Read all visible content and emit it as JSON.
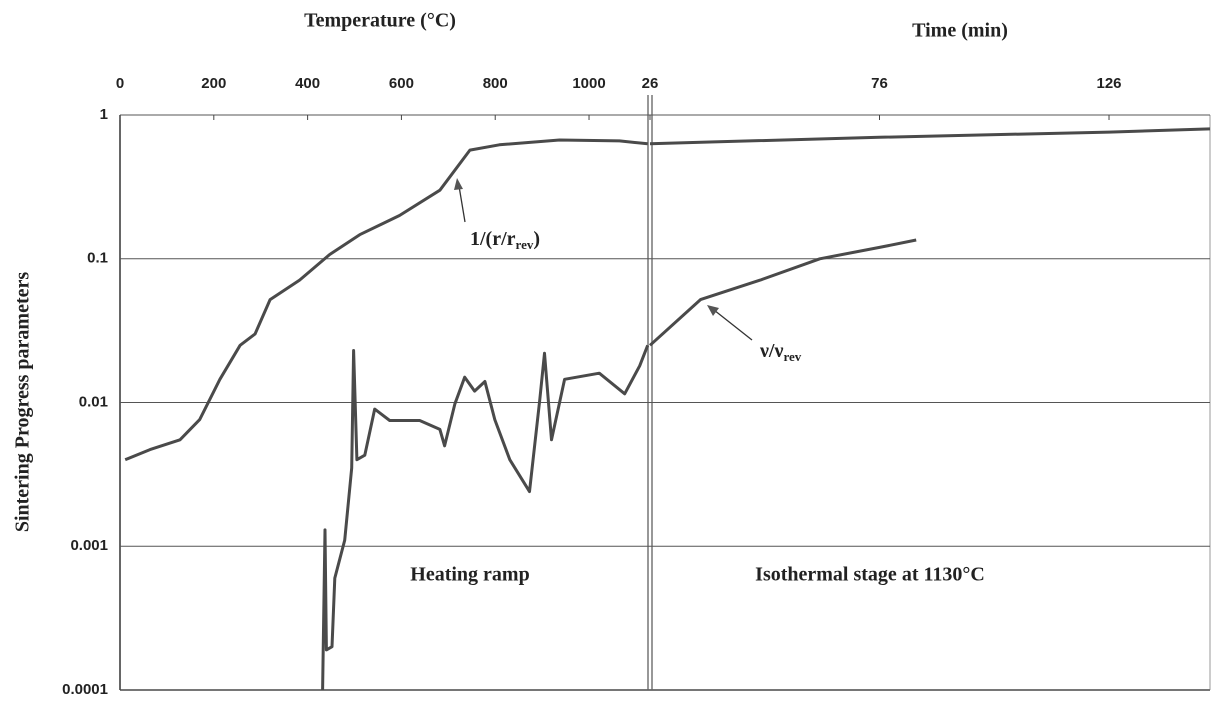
{
  "chart_data": {
    "type": "line",
    "log_y": true,
    "grid": true,
    "x_title": "Temperature (°C)",
    "x2_title": "Time (min)",
    "y_title": "Sintering Progress parameters",
    "xlim": [
      0,
      1130
    ],
    "xticks": [
      0,
      200,
      400,
      600,
      800,
      1000
    ],
    "x2lim": [
      26,
      148
    ],
    "x2ticks": [
      26,
      76,
      126
    ],
    "ylim": [
      0.0001,
      1
    ],
    "yticks": [
      0.0001,
      0.001,
      0.01,
      0.1,
      1
    ],
    "series": [
      {
        "color": "#4a4a4a",
        "x": [
          11,
          64,
          128,
          170,
          213,
          256,
          288,
          320,
          383,
          447,
          511,
          596,
          682,
          746,
          809,
          937,
          1065,
          1125
        ],
        "values": [
          0.004,
          0.0047,
          0.0055,
          0.0076,
          0.0145,
          0.025,
          0.03,
          0.052,
          0.071,
          0.107,
          0.147,
          0.2,
          0.3,
          0.57,
          0.62,
          0.67,
          0.66,
          0.63
        ]
      },
      {
        "color": "#4a4a4a",
        "axis": "x2",
        "x": [
          26,
          40,
          76,
          126,
          148
        ],
        "values": [
          0.63,
          0.65,
          0.7,
          0.76,
          0.8
        ]
      },
      {
        "color": "#4a4a4a",
        "x": [
          432,
          437,
          440,
          452,
          458,
          479,
          494,
          498,
          505,
          522,
          543,
          575,
          639,
          682,
          692,
          714,
          735,
          756,
          778,
          799,
          831,
          873,
          895,
          905,
          920,
          948,
          1022,
          1076,
          1108,
          1125
        ],
        "values": [
          0.0001,
          0.0013,
          0.00019,
          0.0002,
          0.0006,
          0.0011,
          0.0035,
          0.023,
          0.004,
          0.0043,
          0.009,
          0.0075,
          0.0075,
          0.0065,
          0.005,
          0.0098,
          0.015,
          0.012,
          0.014,
          0.0076,
          0.004,
          0.0024,
          0.0105,
          0.022,
          0.0055,
          0.0145,
          0.016,
          0.0115,
          0.018,
          0.025
        ]
      },
      {
        "color": "#4a4a4a",
        "axis": "x2",
        "x": [
          26,
          37,
          50,
          63,
          76,
          84
        ],
        "values": [
          0.025,
          0.052,
          0.071,
          0.1,
          0.12,
          0.135
        ]
      }
    ],
    "annotations": [
      {
        "parts": [
          "1/(r/r",
          "rev",
          ")"
        ]
      },
      {
        "parts": [
          "ν/ν",
          "rev"
        ]
      },
      {
        "text": "Heating ramp"
      },
      {
        "text": "Isothermal stage at 1130°C"
      }
    ]
  }
}
